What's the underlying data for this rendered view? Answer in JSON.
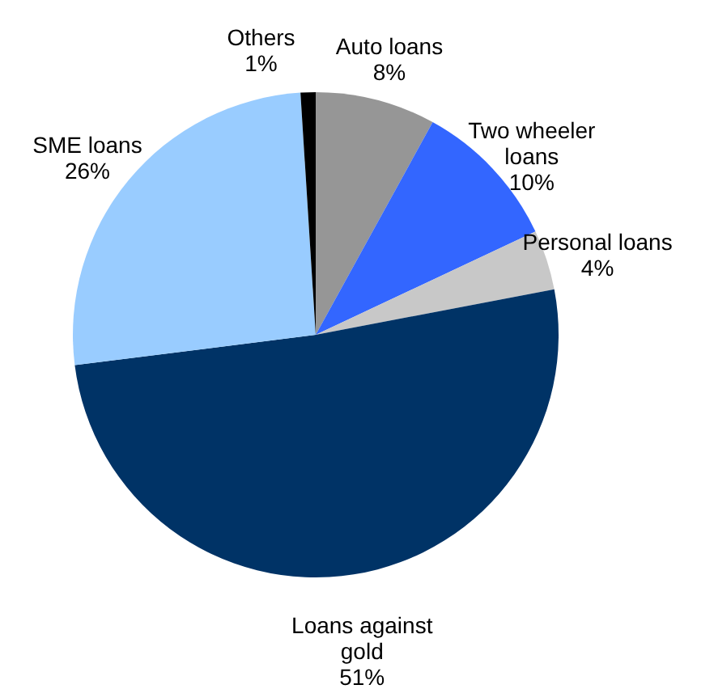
{
  "chart_data": {
    "type": "pie",
    "categories": [
      "Auto loans",
      "Two wheeler loans",
      "Personal loans",
      "Loans against gold",
      "SME loans",
      "Others"
    ],
    "values": [
      8,
      10,
      4,
      51,
      26,
      1
    ],
    "colors": [
      "#969696",
      "#3366ff",
      "#c8c8c8",
      "#003366",
      "#99ccff",
      "#000000"
    ],
    "value_labels": [
      "8%",
      "10%",
      "4%",
      "51%",
      "26%",
      "1%"
    ]
  }
}
